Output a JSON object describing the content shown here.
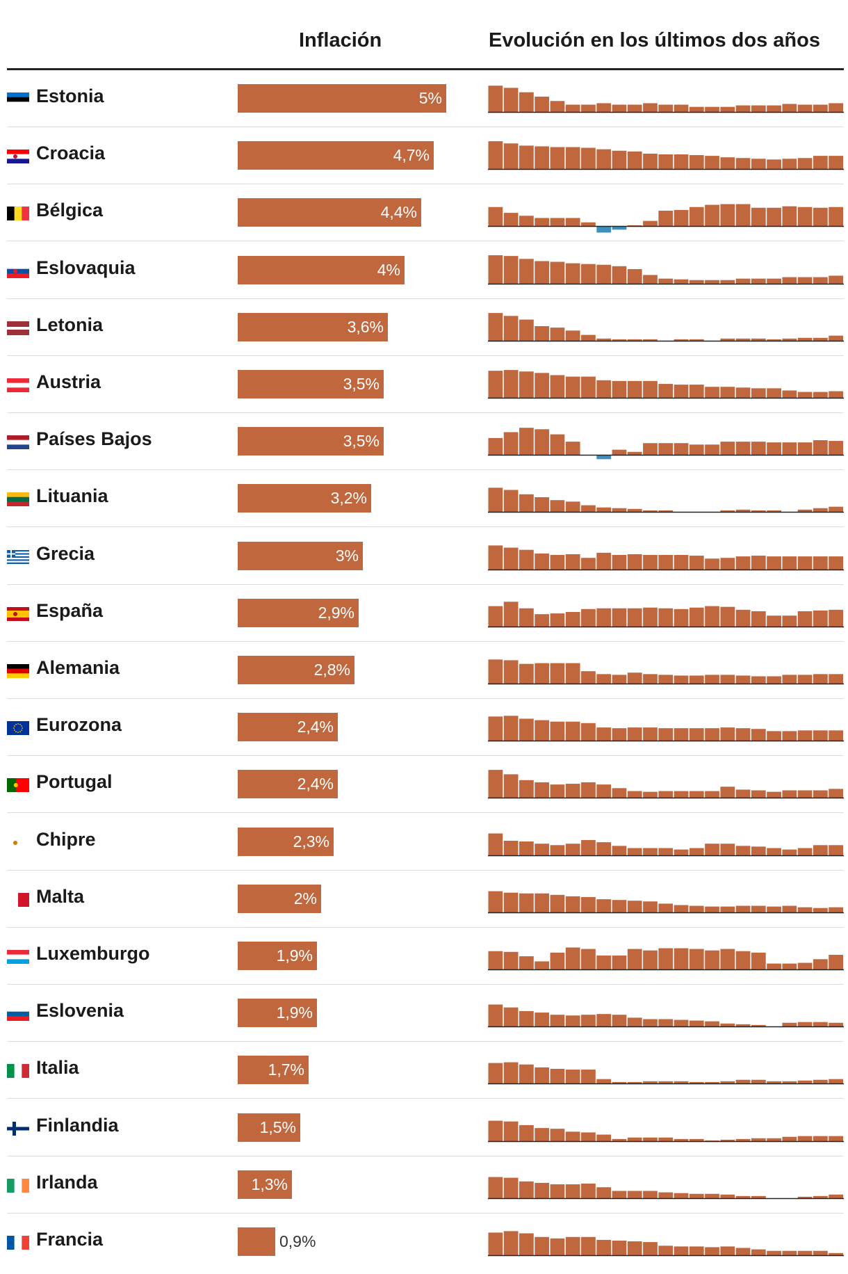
{
  "chart_data": {
    "type": "table",
    "columns": {
      "inflation": "Inflación",
      "evolution": "Evolución en los últimos dos años"
    },
    "colors": {
      "bar": "#c1673e",
      "negative": "#3d8fbf",
      "axis": "#222222"
    },
    "xlim": [
      0,
      5
    ],
    "rows": [
      {
        "country": "Estonia",
        "label": "5%",
        "value": 5.0,
        "flag": "estonia-flag",
        "trend": [
          3.6,
          3.3,
          2.7,
          2.1,
          1.5,
          1.0,
          1.0,
          1.2,
          1.0,
          1.0,
          1.2,
          1.0,
          1.0,
          0.7,
          0.7,
          0.7,
          0.9,
          0.9,
          0.9,
          1.1,
          1.0,
          1.0,
          1.2
        ]
      },
      {
        "country": "Croacia",
        "label": "4,7%",
        "value": 4.7,
        "flag": "croacia-flag",
        "trend": [
          3.8,
          3.5,
          3.2,
          3.1,
          3.0,
          3.0,
          2.9,
          2.7,
          2.5,
          2.4,
          2.1,
          2.0,
          2.0,
          1.9,
          1.8,
          1.6,
          1.5,
          1.4,
          1.3,
          1.4,
          1.5,
          1.8,
          1.8
        ]
      },
      {
        "country": "Bélgica",
        "label": "4,4%",
        "value": 4.4,
        "flag": "belgica-flag",
        "trend": [
          2.6,
          1.8,
          1.4,
          1.1,
          1.1,
          1.1,
          0.5,
          -0.9,
          -0.5,
          0.1,
          0.7,
          2.1,
          2.2,
          2.6,
          2.9,
          3.0,
          3.0,
          2.5,
          2.5,
          2.7,
          2.6,
          2.5,
          2.6
        ]
      },
      {
        "country": "Eslovaquia",
        "label": "4%",
        "value": 4.0,
        "flag": "eslovaquia-flag",
        "trend": [
          3.9,
          3.8,
          3.4,
          3.1,
          3.0,
          2.8,
          2.7,
          2.6,
          2.4,
          2.0,
          1.2,
          0.7,
          0.6,
          0.5,
          0.5,
          0.5,
          0.7,
          0.7,
          0.7,
          0.9,
          0.9,
          0.9,
          1.1
        ]
      },
      {
        "country": "Letonia",
        "label": "3,6%",
        "value": 3.6,
        "flag": "letonia-flag",
        "trend": [
          3.8,
          3.4,
          2.9,
          2.0,
          1.8,
          1.4,
          0.8,
          0.3,
          0.2,
          0.2,
          0.2,
          0.0,
          0.2,
          0.2,
          0.0,
          0.3,
          0.3,
          0.3,
          0.2,
          0.3,
          0.4,
          0.4,
          0.7
        ]
      },
      {
        "country": "Austria",
        "label": "3,5%",
        "value": 3.5,
        "flag": "austria-flag",
        "trend": [
          3.7,
          3.8,
          3.6,
          3.4,
          3.1,
          2.9,
          2.9,
          2.4,
          2.3,
          2.3,
          2.3,
          1.9,
          1.8,
          1.8,
          1.5,
          1.5,
          1.4,
          1.3,
          1.3,
          1.0,
          0.8,
          0.8,
          0.9
        ]
      },
      {
        "country": "Países Bajos",
        "label": "3,5%",
        "value": 3.5,
        "flag": "paises-bajos-flag",
        "trend": [
          2.3,
          3.1,
          3.7,
          3.5,
          2.8,
          1.8,
          0.0,
          -0.6,
          0.7,
          0.4,
          1.6,
          1.6,
          1.6,
          1.4,
          1.4,
          1.8,
          1.8,
          1.8,
          1.7,
          1.7,
          1.7,
          2.0,
          1.9
        ]
      },
      {
        "country": "Lituania",
        "label": "3,2%",
        "value": 3.2,
        "flag": "lituania-flag",
        "trend": [
          3.3,
          3.0,
          2.4,
          2.0,
          1.6,
          1.4,
          0.9,
          0.6,
          0.5,
          0.4,
          0.2,
          0.2,
          0.0,
          0.0,
          0.0,
          0.2,
          0.3,
          0.2,
          0.2,
          0.0,
          0.3,
          0.5,
          0.7
        ]
      },
      {
        "country": "Grecia",
        "label": "3%",
        "value": 3.0,
        "flag": "grecia-flag",
        "trend": [
          3.3,
          3.0,
          2.7,
          2.2,
          2.0,
          2.1,
          1.6,
          2.3,
          2.0,
          2.1,
          2.0,
          2.0,
          2.0,
          1.9,
          1.5,
          1.6,
          1.8,
          1.9,
          1.8,
          1.8,
          1.8,
          1.8,
          1.8
        ]
      },
      {
        "country": "España",
        "label": "2,9%",
        "value": 2.9,
        "flag": "espana-flag",
        "trend": [
          2.8,
          3.4,
          2.5,
          1.7,
          1.8,
          2.0,
          2.4,
          2.5,
          2.5,
          2.5,
          2.6,
          2.5,
          2.4,
          2.6,
          2.8,
          2.7,
          2.3,
          2.1,
          1.5,
          1.5,
          2.1,
          2.2,
          2.3
        ]
      },
      {
        "country": "Alemania",
        "label": "2,8%",
        "value": 2.8,
        "flag": "alemania-flag",
        "trend": [
          3.3,
          3.2,
          2.7,
          2.8,
          2.8,
          2.8,
          1.7,
          1.3,
          1.2,
          1.5,
          1.3,
          1.2,
          1.1,
          1.1,
          1.2,
          1.2,
          1.1,
          1.0,
          1.0,
          1.2,
          1.2,
          1.3,
          1.3
        ]
      },
      {
        "country": "Eurozona",
        "label": "2,4%",
        "value": 2.4,
        "flag": "eurozona-flag",
        "trend": [
          3.3,
          3.4,
          3.0,
          2.8,
          2.6,
          2.6,
          2.4,
          1.8,
          1.7,
          1.8,
          1.8,
          1.7,
          1.7,
          1.7,
          1.7,
          1.8,
          1.7,
          1.6,
          1.3,
          1.3,
          1.4,
          1.4,
          1.4
        ]
      },
      {
        "country": "Portugal",
        "label": "2,4%",
        "value": 2.4,
        "flag": "portugal-flag",
        "trend": [
          3.8,
          3.2,
          2.4,
          2.1,
          1.8,
          1.9,
          2.1,
          1.8,
          1.3,
          0.9,
          0.8,
          0.9,
          0.9,
          0.9,
          0.9,
          1.5,
          1.1,
          1.0,
          0.8,
          1.0,
          1.0,
          1.0,
          1.2
        ]
      },
      {
        "country": "Chipre",
        "label": "2,3%",
        "value": 2.3,
        "flag": "chipre-flag",
        "trend": [
          3.0,
          2.0,
          1.9,
          1.6,
          1.4,
          1.6,
          2.1,
          1.8,
          1.3,
          1.0,
          1.0,
          1.0,
          0.8,
          1.0,
          1.6,
          1.6,
          1.3,
          1.2,
          1.0,
          0.8,
          1.0,
          1.4,
          1.4
        ]
      },
      {
        "country": "Malta",
        "label": "2%",
        "value": 2.0,
        "flag": "malta-flag",
        "trend": [
          2.9,
          2.7,
          2.6,
          2.6,
          2.4,
          2.2,
          2.1,
          1.8,
          1.7,
          1.6,
          1.5,
          1.2,
          1.0,
          0.9,
          0.8,
          0.8,
          0.9,
          0.9,
          0.8,
          0.9,
          0.7,
          0.6,
          0.7
        ]
      },
      {
        "country": "Luxemburgo",
        "label": "1,9%",
        "value": 1.9,
        "flag": "luxemburgo-flag",
        "trend": [
          2.5,
          2.4,
          1.8,
          1.1,
          2.3,
          3.0,
          2.8,
          1.9,
          1.9,
          2.8,
          2.6,
          2.9,
          2.9,
          2.8,
          2.6,
          2.8,
          2.5,
          2.3,
          0.8,
          0.8,
          0.9,
          1.4,
          2.0
        ]
      },
      {
        "country": "Eslovenia",
        "label": "1,9%",
        "value": 1.9,
        "flag": "eslovenia-flag",
        "trend": [
          3.0,
          2.6,
          2.1,
          1.9,
          1.6,
          1.5,
          1.6,
          1.7,
          1.6,
          1.2,
          1.0,
          1.0,
          0.9,
          0.8,
          0.7,
          0.4,
          0.3,
          0.2,
          0.0,
          0.5,
          0.6,
          0.6,
          0.5
        ]
      },
      {
        "country": "Italia",
        "label": "1,7%",
        "value": 1.7,
        "flag": "italia-flag",
        "trend": [
          2.8,
          2.9,
          2.6,
          2.2,
          2.0,
          1.9,
          1.9,
          0.6,
          0.2,
          0.2,
          0.3,
          0.3,
          0.3,
          0.2,
          0.2,
          0.3,
          0.5,
          0.5,
          0.3,
          0.3,
          0.4,
          0.5,
          0.6
        ]
      },
      {
        "country": "Finlandia",
        "label": "1,5%",
        "value": 1.5,
        "flag": "finlandia-flag",
        "trend": [
          2.8,
          2.7,
          2.2,
          1.8,
          1.7,
          1.3,
          1.2,
          0.9,
          0.3,
          0.5,
          0.5,
          0.5,
          0.3,
          0.3,
          0.1,
          0.2,
          0.3,
          0.4,
          0.4,
          0.6,
          0.7,
          0.7,
          0.7
        ]
      },
      {
        "country": "Irlanda",
        "label": "1,3%",
        "value": 1.3,
        "flag": "irlanda-flag",
        "trend": [
          2.9,
          2.8,
          2.3,
          2.1,
          1.9,
          1.9,
          2.0,
          1.5,
          1.0,
          1.0,
          1.0,
          0.8,
          0.7,
          0.6,
          0.6,
          0.5,
          0.3,
          0.3,
          0.0,
          0.0,
          0.2,
          0.3,
          0.5
        ]
      },
      {
        "country": "Francia",
        "label": "0,9%",
        "value": 0.9,
        "flag": "francia-flag",
        "trend": [
          3.1,
          3.3,
          3.0,
          2.5,
          2.3,
          2.5,
          2.5,
          2.1,
          2.0,
          1.9,
          1.8,
          1.3,
          1.2,
          1.2,
          1.1,
          1.2,
          1.0,
          0.8,
          0.6,
          0.6,
          0.6,
          0.6,
          0.3
        ]
      }
    ]
  }
}
